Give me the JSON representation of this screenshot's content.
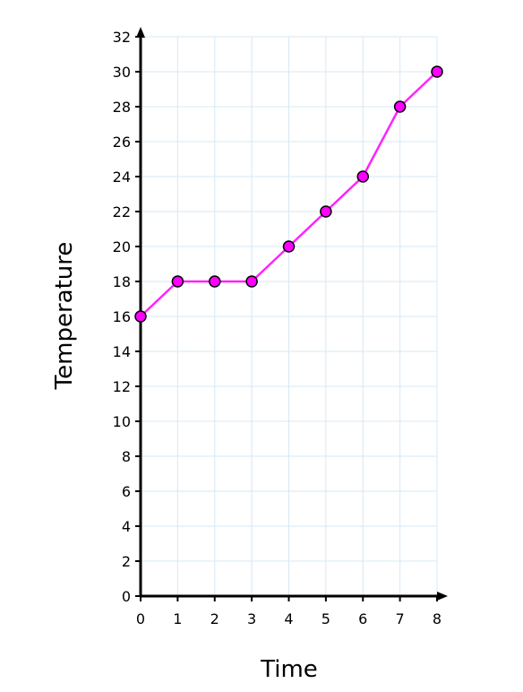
{
  "chart_data": {
    "type": "line",
    "title": "",
    "xlabel": "Time",
    "ylabel": "Temperature",
    "x": [
      0,
      1,
      2,
      3,
      4,
      5,
      6,
      7,
      8
    ],
    "series": [
      {
        "values": [
          16,
          18,
          18,
          18,
          20,
          22,
          24,
          28,
          30
        ]
      }
    ],
    "xlim": [
      0,
      8
    ],
    "ylim": [
      0,
      32
    ],
    "x_ticks": [
      "0",
      "1",
      "2",
      "3",
      "4",
      "5",
      "6",
      "7",
      "8"
    ],
    "y_ticks": [
      "0",
      "2",
      "4",
      "6",
      "8",
      "10",
      "12",
      "14",
      "16",
      "18",
      "20",
      "22",
      "24",
      "26",
      "28",
      "30",
      "32"
    ],
    "grid": true,
    "legend": "none",
    "colors": {
      "line": "#ff22ff",
      "marker_fill": "#ff00ff",
      "marker_stroke": "#000000",
      "grid": "#d6e8f5",
      "axis": "#000000"
    }
  }
}
